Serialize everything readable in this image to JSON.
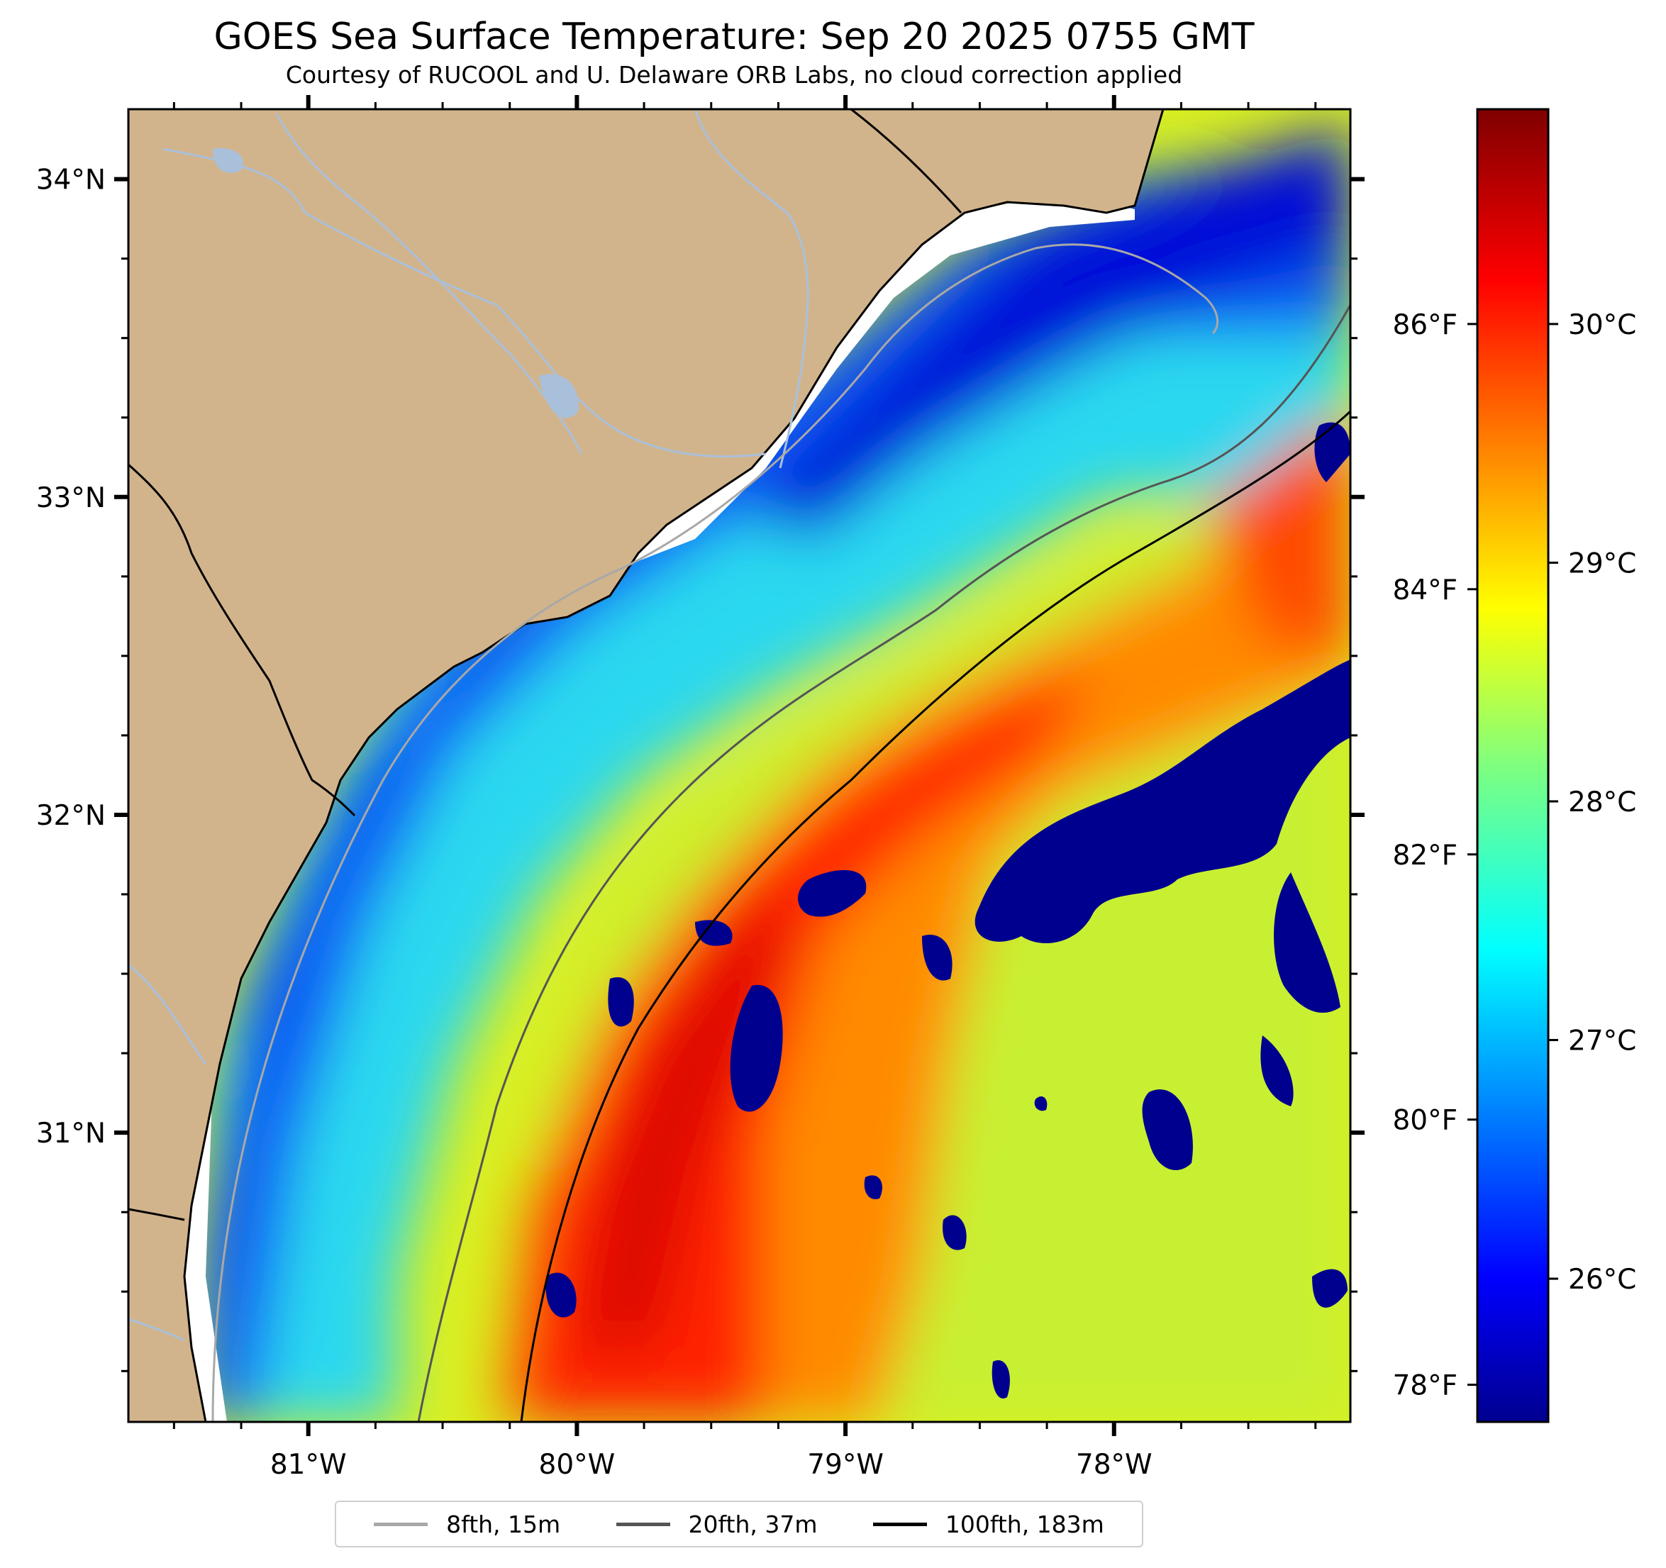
{
  "map": {
    "title": "GOES Sea Surface Temperature: Sep 20 2025 0755 GMT",
    "subtitle": "Courtesy of RUCOOL and U. Delaware ORB Labs, no cloud correction applied",
    "lon_labels": [
      "81°W",
      "80°W",
      "79°W",
      "78°W"
    ],
    "lat_labels": [
      "34°N",
      "33°N",
      "32°N",
      "31°N"
    ],
    "lon_range": [
      -81.67,
      -77.12
    ],
    "lat_range": [
      30.09,
      34.22
    ],
    "colors": {
      "land": "#D2B48C",
      "cloud_mask": "#ffffff",
      "rivers": "#a9c0db",
      "coastline": "#000000"
    }
  },
  "colorbar": {
    "celsius_labels": [
      "30°C",
      "29°C",
      "28°C",
      "27°C",
      "26°C"
    ],
    "fahrenheit_labels": [
      "86°F",
      "84°F",
      "82°F",
      "80°F",
      "78°F"
    ],
    "celsius_ticks": [
      30,
      29,
      28,
      27,
      26
    ],
    "fahrenheit_ticks": [
      86,
      84,
      82,
      80,
      78
    ],
    "range_c": [
      25.4,
      30.9
    ],
    "colormap": "jet"
  },
  "legend": {
    "items": [
      {
        "label": "8fth, 15m",
        "color": "#a8a8a8"
      },
      {
        "label": "20fth, 37m",
        "color": "#555555"
      },
      {
        "label": "100fth, 183m",
        "color": "#000000"
      }
    ]
  }
}
